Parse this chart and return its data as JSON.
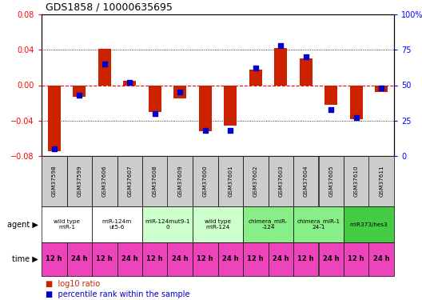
{
  "title": "GDS1858 / 10000635695",
  "samples": [
    "GSM37598",
    "GSM37599",
    "GSM37606",
    "GSM37607",
    "GSM37608",
    "GSM37609",
    "GSM37600",
    "GSM37601",
    "GSM37602",
    "GSM37603",
    "GSM37604",
    "GSM37605",
    "GSM37610",
    "GSM37611"
  ],
  "log10_ratio": [
    -0.075,
    -0.013,
    0.041,
    0.005,
    -0.03,
    -0.015,
    -0.052,
    -0.046,
    0.018,
    0.042,
    0.03,
    -0.022,
    -0.038,
    -0.008
  ],
  "percentile_rank": [
    5,
    43,
    65,
    52,
    30,
    45,
    18,
    18,
    62,
    78,
    70,
    33,
    27,
    48
  ],
  "agents": [
    {
      "label": "wild type\nmiR-1",
      "cols": [
        0,
        1
      ],
      "color": "#ffffff"
    },
    {
      "label": "miR-124m\nut5-6",
      "cols": [
        2,
        3
      ],
      "color": "#ffffff"
    },
    {
      "label": "miR-124mut9-1\n0",
      "cols": [
        4,
        5
      ],
      "color": "#ccffcc"
    },
    {
      "label": "wild type\nmiR-124",
      "cols": [
        6,
        7
      ],
      "color": "#ccffcc"
    },
    {
      "label": "chimera_miR-\n-124",
      "cols": [
        8,
        9
      ],
      "color": "#88ee88"
    },
    {
      "label": "chimera_miR-1\n24-1",
      "cols": [
        10,
        11
      ],
      "color": "#88ee88"
    },
    {
      "label": "miR373/hes3",
      "cols": [
        12,
        13
      ],
      "color": "#44cc44"
    }
  ],
  "times": [
    "12 h",
    "24 h",
    "12 h",
    "24 h",
    "12 h",
    "24 h",
    "12 h",
    "24 h",
    "12 h",
    "24 h",
    "12 h",
    "24 h",
    "12 h",
    "24 h"
  ],
  "ylim_left": [
    -0.08,
    0.08
  ],
  "ylim_right": [
    0,
    100
  ],
  "yticks_left": [
    -0.08,
    -0.04,
    0,
    0.04,
    0.08
  ],
  "yticks_right": [
    0,
    25,
    50,
    75,
    100
  ],
  "bar_color": "#cc2200",
  "dot_color": "#0000cc",
  "bg_color": "#ffffff",
  "sample_bg": "#cccccc",
  "time_bg": "#ee44bb",
  "figsize": [
    5.28,
    3.75
  ],
  "dpi": 100
}
